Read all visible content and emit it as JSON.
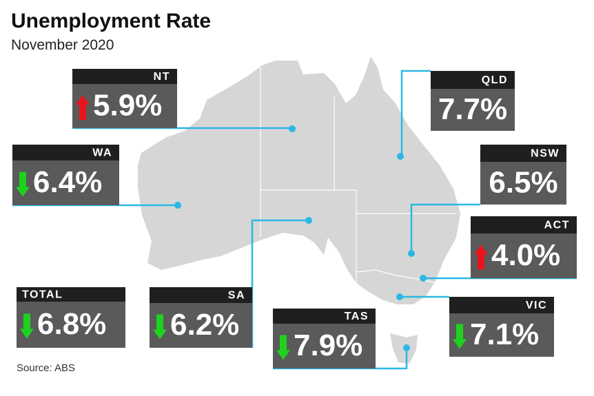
{
  "header": {
    "title": "Unemployment Rate",
    "subtitle": "November 2020"
  },
  "regions": [
    {
      "name": "NT",
      "value": "5.9%",
      "trend": "up"
    },
    {
      "name": "QLD",
      "value": "7.7%"
    },
    {
      "name": "WA",
      "value": "6.4%",
      "trend": "down"
    },
    {
      "name": "NSW",
      "value": "6.5%"
    },
    {
      "name": "ACT",
      "value": "4.0%",
      "trend": "up"
    },
    {
      "name": "TOTAL",
      "value": "6.8%",
      "trend": "down"
    },
    {
      "name": "SA",
      "value": "6.2%",
      "trend": "down"
    },
    {
      "name": "TAS",
      "value": "7.9%",
      "trend": "down"
    },
    {
      "name": "VIC",
      "value": "7.1%",
      "trend": "down"
    }
  ],
  "footer": {
    "source": "Source: ABS"
  }
}
